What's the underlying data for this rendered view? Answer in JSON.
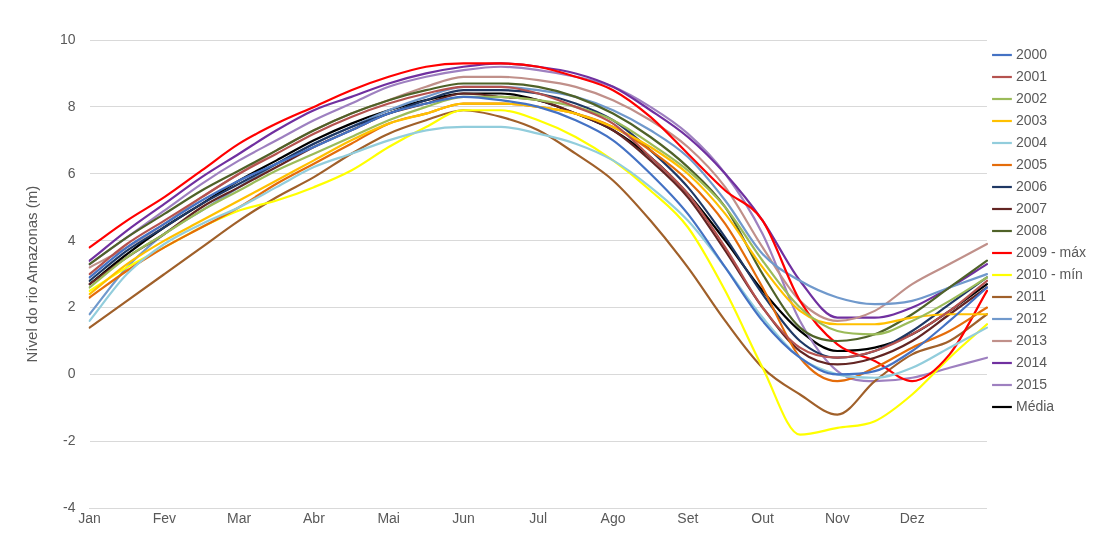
{
  "chart_data": {
    "type": "line",
    "ylabel": "Nível do rio Amazonas (m)",
    "categories": [
      "Jan",
      null,
      "Fev",
      null,
      "Mar",
      null,
      "Abr",
      null,
      "Mai",
      null,
      "Jun",
      null,
      "Jul",
      null,
      "Ago",
      null,
      "Set",
      null,
      "Out",
      null,
      "Nov",
      null,
      "Dez",
      null,
      null
    ],
    "ylim": [
      -4,
      10
    ],
    "yticks": [
      -4,
      -2,
      0,
      2,
      4,
      6,
      8,
      10
    ],
    "grid": "y",
    "legend": "right",
    "marker": "none",
    "line_style": "solid",
    "series": [
      {
        "name": "2000",
        "color": "#4472c4",
        "values": [
          2.9,
          3.8,
          4.5,
          5.2,
          5.8,
          6.3,
          6.8,
          7.3,
          7.8,
          8.1,
          8.3,
          8.2,
          8.0,
          7.6,
          7.0,
          6.0,
          4.8,
          3.2,
          1.6,
          0.5,
          0.0,
          0.1,
          0.7,
          1.6,
          2.6
        ]
      },
      {
        "name": "2001",
        "color": "#b5524f",
        "values": [
          3.0,
          3.9,
          4.6,
          5.3,
          6.0,
          6.6,
          7.2,
          7.7,
          8.1,
          8.4,
          8.6,
          8.6,
          8.4,
          8.0,
          7.5,
          6.5,
          5.4,
          3.8,
          2.0,
          0.8,
          0.5,
          0.7,
          1.2,
          1.9,
          2.8
        ]
      },
      {
        "name": "2002",
        "color": "#9bbb59",
        "values": [
          2.6,
          3.5,
          4.2,
          4.9,
          5.5,
          6.1,
          6.6,
          7.1,
          7.6,
          8.0,
          8.3,
          8.3,
          8.2,
          8.0,
          7.6,
          6.9,
          6.1,
          5.0,
          3.4,
          2.0,
          1.3,
          1.2,
          1.6,
          2.2,
          2.9
        ]
      },
      {
        "name": "2003",
        "color": "#ffc000",
        "values": [
          2.4,
          3.3,
          4.0,
          4.6,
          5.2,
          5.8,
          6.4,
          7.0,
          7.5,
          7.8,
          8.1,
          8.1,
          8.0,
          7.8,
          7.4,
          6.8,
          6.0,
          4.8,
          3.2,
          1.9,
          1.5,
          1.5,
          1.7,
          1.8,
          1.8
        ]
      },
      {
        "name": "2004",
        "color": "#92cddc",
        "values": [
          1.6,
          3.0,
          3.9,
          4.5,
          5.0,
          5.6,
          6.2,
          6.6,
          7.0,
          7.3,
          7.4,
          7.4,
          7.2,
          6.9,
          6.4,
          5.6,
          4.6,
          3.2,
          1.7,
          0.5,
          0.0,
          -0.1,
          0.2,
          0.8,
          1.4
        ]
      },
      {
        "name": "2005",
        "color": "#e46c0a",
        "values": [
          2.3,
          3.1,
          3.8,
          4.4,
          5.0,
          5.7,
          6.3,
          6.9,
          7.5,
          7.8,
          8.1,
          8.1,
          8.0,
          7.8,
          7.4,
          6.7,
          5.8,
          4.5,
          2.6,
          0.5,
          -0.2,
          0.2,
          0.8,
          1.3,
          2.0
        ]
      },
      {
        "name": "2006",
        "color": "#1f3864",
        "values": [
          2.8,
          3.7,
          4.4,
          5.1,
          5.7,
          6.3,
          6.9,
          7.4,
          7.8,
          8.2,
          8.5,
          8.5,
          8.4,
          8.1,
          7.6,
          6.7,
          5.6,
          4.1,
          2.4,
          1.0,
          0.5,
          0.7,
          1.3,
          2.1,
          2.9
        ]
      },
      {
        "name": "2007",
        "color": "#632523",
        "values": [
          2.7,
          3.5,
          4.2,
          5.0,
          5.6,
          6.2,
          6.8,
          7.3,
          7.8,
          8.1,
          8.4,
          8.3,
          8.2,
          7.8,
          7.3,
          6.4,
          5.3,
          3.7,
          2.0,
          0.7,
          0.3,
          0.5,
          1.0,
          1.8,
          2.6
        ]
      },
      {
        "name": "2008",
        "color": "#4f6228",
        "values": [
          3.3,
          4.1,
          4.8,
          5.5,
          6.1,
          6.7,
          7.3,
          7.8,
          8.2,
          8.5,
          8.7,
          8.7,
          8.6,
          8.3,
          7.8,
          7.1,
          6.2,
          5.0,
          3.0,
          1.4,
          1.0,
          1.2,
          1.8,
          2.6,
          3.4
        ]
      },
      {
        "name": "2009 - máx",
        "color": "#ff0000",
        "values": [
          3.8,
          4.6,
          5.3,
          6.1,
          6.9,
          7.5,
          8.0,
          8.5,
          8.9,
          9.2,
          9.3,
          9.3,
          9.2,
          8.9,
          8.5,
          7.7,
          6.6,
          5.5,
          4.6,
          2.2,
          0.9,
          0.4,
          -0.2,
          0.6,
          2.5
        ]
      },
      {
        "name": "2010 - mín",
        "color": "#ffff00",
        "values": [
          2.5,
          3.2,
          3.8,
          4.4,
          4.9,
          5.2,
          5.6,
          6.1,
          6.8,
          7.4,
          7.9,
          7.9,
          7.6,
          7.1,
          6.4,
          5.5,
          4.4,
          2.5,
          0.2,
          -1.8,
          -1.6,
          -1.4,
          -0.6,
          0.5,
          1.5
        ]
      },
      {
        "name": "2011",
        "color": "#a0602a",
        "values": [
          1.4,
          2.2,
          3.0,
          3.8,
          4.6,
          5.3,
          5.9,
          6.6,
          7.2,
          7.6,
          7.9,
          7.7,
          7.3,
          6.6,
          5.8,
          4.6,
          3.2,
          1.6,
          0.2,
          -0.6,
          -1.2,
          -0.2,
          0.6,
          1.0,
          1.8
        ]
      },
      {
        "name": "2012",
        "color": "#7099cc",
        "values": [
          1.8,
          3.2,
          4.2,
          4.9,
          5.6,
          6.3,
          6.9,
          7.4,
          7.9,
          8.3,
          8.6,
          8.6,
          8.5,
          8.3,
          7.9,
          7.3,
          6.5,
          5.2,
          3.6,
          2.8,
          2.3,
          2.1,
          2.2,
          2.6,
          3.0
        ]
      },
      {
        "name": "2013",
        "color": "#c0908a",
        "values": [
          3.2,
          3.8,
          4.5,
          5.3,
          6.0,
          6.7,
          7.3,
          7.8,
          8.2,
          8.6,
          8.9,
          8.9,
          8.8,
          8.6,
          8.2,
          7.6,
          6.8,
          5.6,
          3.8,
          2.2,
          1.6,
          1.9,
          2.7,
          3.3,
          3.9
        ]
      },
      {
        "name": "2014",
        "color": "#7030a0",
        "values": [
          3.4,
          4.3,
          5.1,
          5.9,
          6.6,
          7.3,
          7.9,
          8.3,
          8.7,
          9.0,
          9.2,
          9.3,
          9.2,
          9.0,
          8.6,
          7.9,
          7.1,
          6.0,
          4.6,
          2.8,
          1.7,
          1.7,
          2.0,
          2.6,
          3.3
        ]
      },
      {
        "name": "2015",
        "color": "#9e80c0",
        "values": [
          3.3,
          4.1,
          4.9,
          5.7,
          6.4,
          7.0,
          7.6,
          8.1,
          8.6,
          8.9,
          9.1,
          9.2,
          9.1,
          8.9,
          8.6,
          8.0,
          7.2,
          6.0,
          4.2,
          1.6,
          0.1,
          -0.2,
          -0.1,
          0.2,
          0.5
        ]
      },
      {
        "name": "Média",
        "color": "#000000",
        "values": [
          2.7,
          3.6,
          4.4,
          5.1,
          5.8,
          6.4,
          7.0,
          7.5,
          7.9,
          8.2,
          8.4,
          8.4,
          8.2,
          7.8,
          7.3,
          6.5,
          5.4,
          4.0,
          2.5,
          1.3,
          0.7,
          0.8,
          1.2,
          1.9,
          2.7
        ]
      }
    ]
  }
}
